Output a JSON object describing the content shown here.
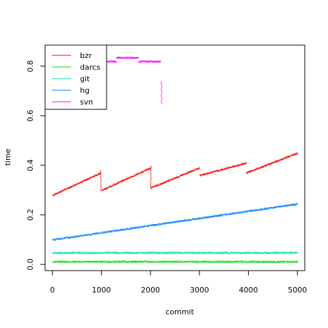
{
  "chart_data": {
    "type": "scatter",
    "title": "",
    "xlabel": "commit",
    "ylabel": "time",
    "xlim": [
      -150,
      5150
    ],
    "ylim": [
      -0.025,
      0.885
    ],
    "x_ticks": [
      0,
      1000,
      2000,
      3000,
      4000,
      5000
    ],
    "x_tick_labels": [
      "0",
      "1000",
      "2000",
      "3000",
      "4000",
      "5000"
    ],
    "y_ticks": [
      0.0,
      0.2,
      0.4,
      0.6,
      0.8
    ],
    "y_tick_labels": [
      "0.0",
      "0.2",
      "0.4",
      "0.6",
      "0.8"
    ],
    "grid": false,
    "legend_position": "top-left",
    "series": [
      {
        "name": "bzr",
        "color": "#ff0000",
        "segments": [
          {
            "x": [
              0,
              980
            ],
            "y": [
              0.28,
              0.37
            ]
          },
          {
            "x": 980,
            "y": [
              0.3,
              0.38
            ]
          },
          {
            "x": [
              1000,
              2000
            ],
            "y": [
              0.3,
              0.39
            ]
          },
          {
            "x": 2000,
            "y": [
              0.31,
              0.4
            ]
          },
          {
            "x": [
              2000,
              3000
            ],
            "y": [
              0.31,
              0.39
            ]
          },
          {
            "x": [
              3000,
              3950
            ],
            "y": [
              0.36,
              0.41
            ]
          },
          {
            "x": [
              3950,
              5000
            ],
            "y": [
              0.37,
              0.45
            ]
          }
        ]
      },
      {
        "name": "darcs",
        "color": "#00e000",
        "segments": [
          {
            "x": [
              0,
              5000
            ],
            "y": [
              0.012,
              0.012
            ]
          }
        ]
      },
      {
        "name": "git",
        "color": "#00e0a0",
        "segments": [
          {
            "x": [
              0,
              5000
            ],
            "y": [
              0.048,
              0.048
            ]
          }
        ]
      },
      {
        "name": "hg",
        "color": "#0080ff",
        "segments": [
          {
            "x": [
              0,
              5000
            ],
            "y": [
              0.1,
              0.245
            ]
          }
        ]
      },
      {
        "name": "svn",
        "color": "#ff00ff",
        "segments": [
          {
            "x": [
              900,
              1300
            ],
            "y": [
              0.82,
              0.82
            ]
          },
          {
            "x": [
              1300,
              1750
            ],
            "y": [
              0.835,
              0.835
            ]
          },
          {
            "x": [
              1750,
              2200
            ],
            "y": [
              0.82,
              0.82
            ]
          },
          {
            "x": 2220,
            "y": [
              0.65,
              0.74
            ]
          }
        ]
      }
    ]
  }
}
